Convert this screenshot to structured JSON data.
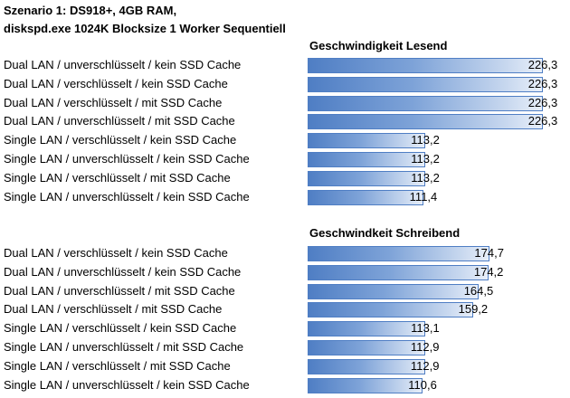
{
  "header": {
    "line1": "Szenario 1: DS918+, 4GB RAM,",
    "line2": "diskspd.exe 1024K Blocksize 1 Worker Sequentiell"
  },
  "colors": {
    "bar": "#4f7ec4",
    "bar_light": "#e8eff9"
  },
  "chart_data": [
    {
      "type": "bar",
      "orientation": "horizontal",
      "title": "Geschwindigkeit Lesend",
      "categories": [
        "Dual LAN / unverschlüsselt / kein SSD Cache",
        "Dual LAN / verschlüsselt / kein SSD Cache",
        "Dual LAN / verschlüsselt / mit SSD Cache",
        "Dual LAN / unverschlüsselt / mit SSD Cache",
        "Single LAN / verschlüsselt / kein SSD Cache",
        "Single LAN / unverschlüsselt / kein SSD Cache",
        "Single LAN / verschlüsselt / mit SSD Cache",
        "Single LAN / unverschlüsselt / kein SSD Cache"
      ],
      "values": [
        226.3,
        226.3,
        226.3,
        226.3,
        113.2,
        113.2,
        113.2,
        111.4
      ],
      "value_labels": [
        "226,3",
        "226,3",
        "226,3",
        "226,3",
        "113,2",
        "113,2",
        "113,2",
        "111,4"
      ],
      "xlim": [
        0,
        226.3
      ],
      "grid": false,
      "legend": "none"
    },
    {
      "type": "bar",
      "orientation": "horizontal",
      "title": "Geschwindkeit Schreibend",
      "categories": [
        "Dual LAN / verschlüsselt / kein SSD Cache",
        "Dual LAN / unverschlüsselt / kein SSD Cache",
        "Dual LAN / unverschlüsselt / mit SSD Cache",
        "Dual LAN / verschlüsselt / mit SSD Cache",
        "Single LAN / verschlüsselt / kein SSD Cache",
        "Single LAN / unverschlüsselt / mit SSD Cache",
        "Single LAN / verschlüsselt / mit SSD Cache",
        "Single LAN / unverschlüsselt / kein SSD Cache"
      ],
      "values": [
        174.7,
        174.2,
        164.5,
        159.2,
        113.1,
        112.9,
        112.9,
        110.6
      ],
      "value_labels": [
        "174,7",
        "174,2",
        "164,5",
        "159,2",
        "113,1",
        "112,9",
        "112,9",
        "110,6"
      ],
      "xlim": [
        0,
        226.3
      ],
      "grid": false,
      "legend": "none"
    }
  ]
}
